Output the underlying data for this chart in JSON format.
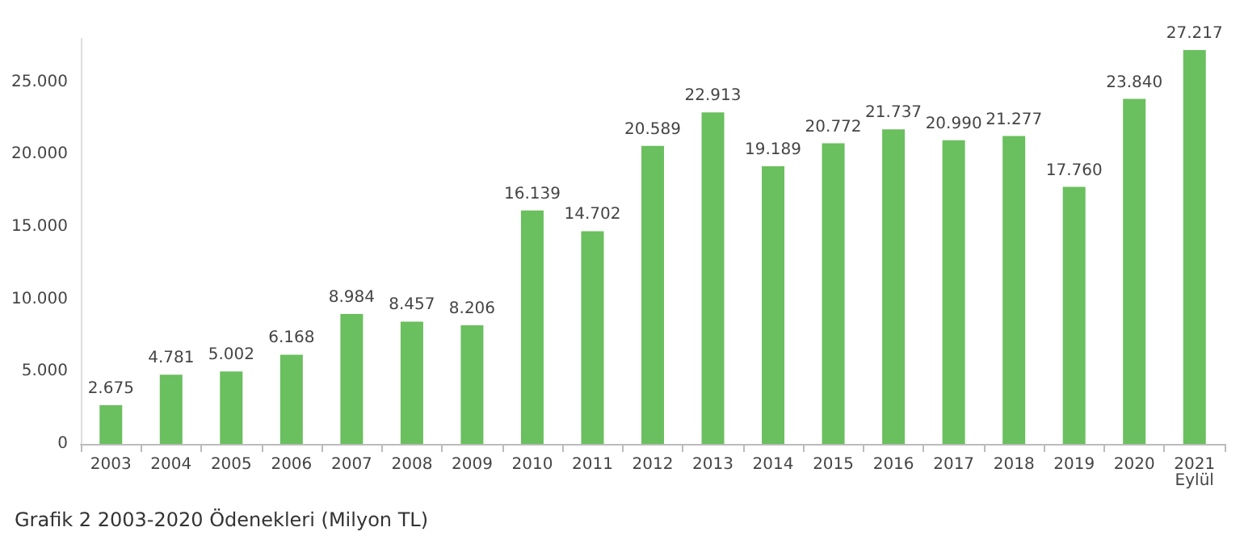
{
  "chart_data": {
    "type": "bar",
    "title": "Grafik 2 2003-2020 Ödenekleri (Milyon TL)",
    "categories": [
      "2003",
      "2004",
      "2005",
      "2006",
      "2007",
      "2008",
      "2009",
      "2010",
      "2011",
      "2012",
      "2013",
      "2014",
      "2015",
      "2016",
      "2017",
      "2018",
      "2019",
      "2020",
      "2021\nEylül"
    ],
    "values": [
      2675,
      4781,
      5002,
      6168,
      8984,
      8457,
      8206,
      16139,
      14702,
      20589,
      22913,
      19189,
      20772,
      21737,
      20990,
      21277,
      17760,
      23840,
      27217
    ],
    "value_labels": [
      "2.675",
      "4.781",
      "5.002",
      "6.168",
      "8.984",
      "8.457",
      "8.206",
      "16.139",
      "14.702",
      "20.589",
      "22.913",
      "19.189",
      "20.772",
      "21.737",
      "20.990",
      "21.277",
      "17.760",
      "23.840",
      "27.217"
    ],
    "color": "#6abf5e",
    "ylim": [
      0,
      28000
    ],
    "yticks": [
      {
        "value": 0,
        "label": "0"
      },
      {
        "value": 5000,
        "label": "5.000"
      },
      {
        "value": 10000,
        "label": "10.000"
      },
      {
        "value": 15000,
        "label": "15.000"
      },
      {
        "value": 20000,
        "label": "20.000"
      },
      {
        "value": 25000,
        "label": "25.000"
      }
    ]
  }
}
